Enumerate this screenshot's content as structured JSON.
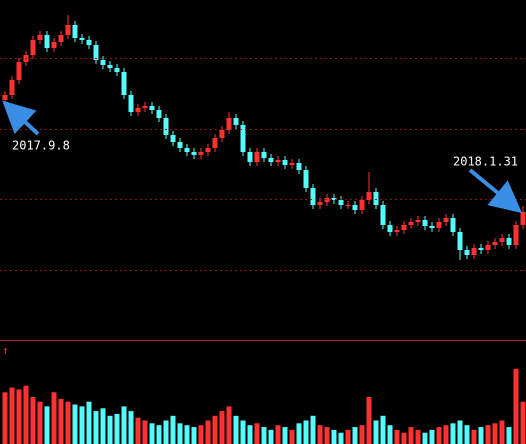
{
  "chart_data": {
    "type": "candlestick",
    "up_color": "#ff3232",
    "down_color": "#54fcfc",
    "ylim": [
      0,
      340
    ],
    "yticks": [
      70,
      141,
      211,
      282
    ],
    "grid": true,
    "vlim": [
      0,
      100
    ],
    "annotations": [
      {
        "text": "2017.9.8"
      },
      {
        "text": "2018.1.31"
      }
    ],
    "open": [
      240,
      245,
      260,
      278,
      285,
      300,
      305,
      292,
      298,
      305,
      315,
      302,
      300,
      295,
      280,
      275,
      272,
      268,
      245,
      228,
      232,
      234,
      230,
      222,
      205,
      198,
      192,
      188,
      185,
      188,
      192,
      202,
      210,
      222,
      215,
      188,
      178,
      188,
      182,
      178,
      180,
      175,
      177,
      170,
      152,
      135,
      138,
      142,
      140,
      135,
      135,
      130,
      140,
      148,
      135,
      115,
      108,
      110,
      115,
      118,
      120,
      114,
      112,
      118,
      122,
      108,
      90,
      85,
      92,
      90,
      95,
      98,
      102,
      95,
      115
    ],
    "high": [
      249,
      264,
      282,
      289,
      304,
      309,
      309,
      302,
      309,
      325,
      319,
      306,
      304,
      299,
      284,
      279,
      276,
      272,
      249,
      236,
      238,
      238,
      234,
      226,
      209,
      202,
      196,
      192,
      192,
      196,
      206,
      214,
      228,
      226,
      219,
      192,
      192,
      192,
      186,
      184,
      184,
      181,
      181,
      174,
      156,
      142,
      146,
      146,
      144,
      139,
      139,
      144,
      168,
      152,
      139,
      119,
      114,
      119,
      122,
      124,
      124,
      118,
      122,
      126,
      126,
      112,
      94,
      96,
      96,
      99,
      102,
      106,
      106,
      119,
      134
    ],
    "low": [
      236,
      241,
      256,
      274,
      281,
      296,
      288,
      288,
      294,
      301,
      298,
      296,
      291,
      276,
      271,
      268,
      264,
      241,
      224,
      224,
      228,
      226,
      218,
      201,
      194,
      188,
      184,
      181,
      181,
      184,
      188,
      198,
      206,
      211,
      184,
      174,
      174,
      178,
      174,
      174,
      171,
      171,
      166,
      148,
      131,
      131,
      134,
      136,
      131,
      131,
      126,
      126,
      136,
      131,
      111,
      104,
      104,
      106,
      111,
      114,
      110,
      108,
      108,
      114,
      104,
      80,
      81,
      81,
      86,
      86,
      91,
      94,
      91,
      91,
      111
    ],
    "close": [
      245,
      260,
      278,
      285,
      300,
      305,
      292,
      298,
      305,
      315,
      302,
      300,
      295,
      280,
      275,
      272,
      268,
      245,
      228,
      232,
      234,
      230,
      222,
      205,
      198,
      192,
      188,
      185,
      188,
      192,
      202,
      210,
      222,
      215,
      188,
      178,
      188,
      182,
      178,
      180,
      175,
      177,
      170,
      152,
      135,
      138,
      142,
      140,
      135,
      135,
      130,
      140,
      148,
      135,
      115,
      108,
      110,
      115,
      118,
      120,
      114,
      112,
      118,
      122,
      108,
      90,
      85,
      92,
      90,
      95,
      98,
      102,
      95,
      115,
      128
    ],
    "volume": [
      55,
      60,
      58,
      62,
      50,
      45,
      40,
      55,
      48,
      45,
      42,
      40,
      45,
      35,
      38,
      30,
      32,
      40,
      35,
      28,
      25,
      22,
      20,
      25,
      30,
      22,
      20,
      18,
      20,
      25,
      30,
      35,
      40,
      30,
      25,
      20,
      22,
      18,
      15,
      20,
      18,
      15,
      22,
      25,
      30,
      20,
      18,
      15,
      12,
      15,
      18,
      20,
      50,
      25,
      30,
      20,
      15,
      12,
      18,
      15,
      12,
      15,
      18,
      20,
      22,
      25,
      20,
      15,
      18,
      20,
      22,
      25,
      18,
      80,
      45
    ]
  }
}
